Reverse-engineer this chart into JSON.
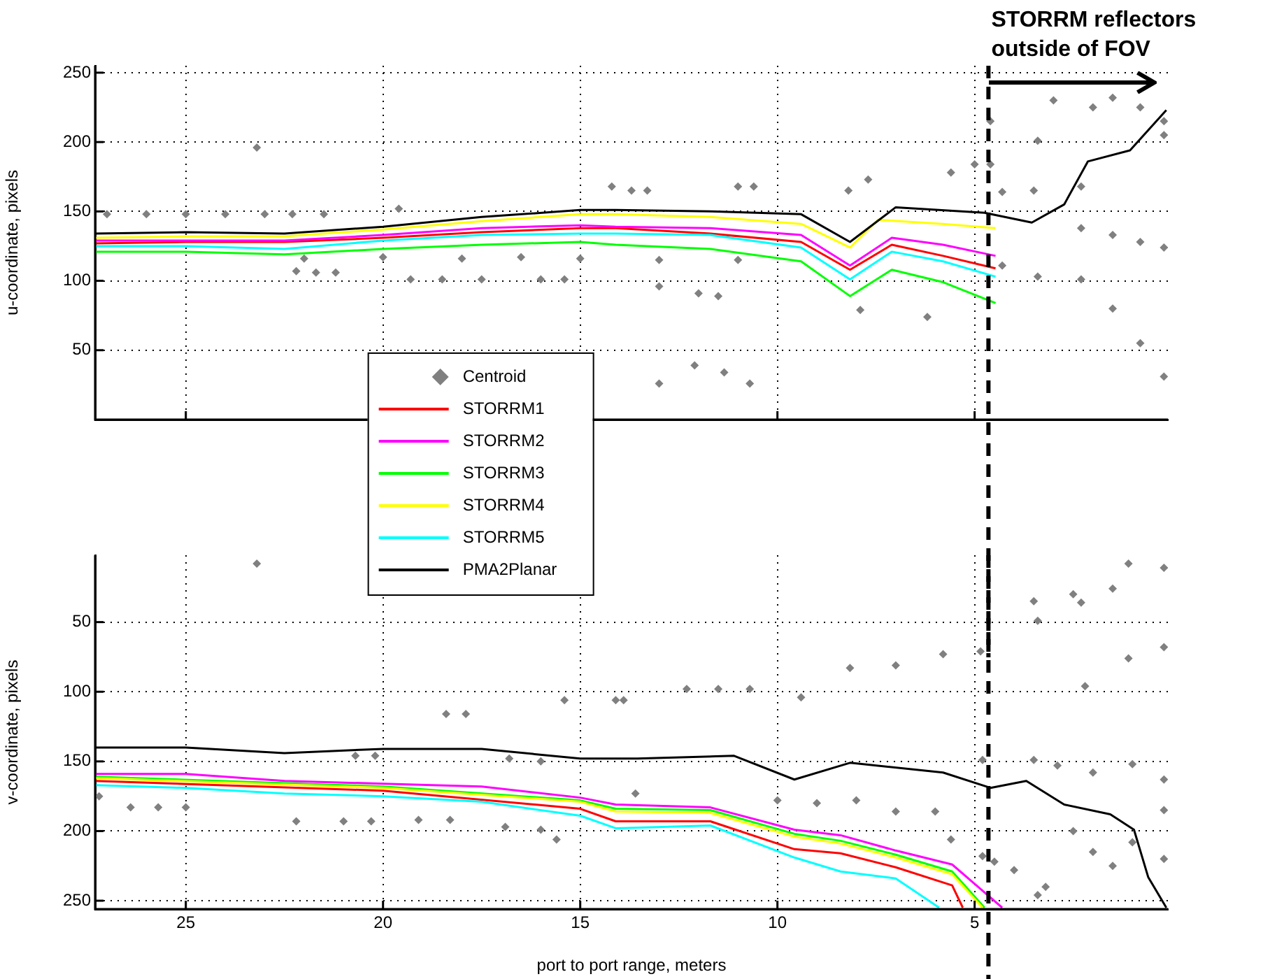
{
  "chart_data": [
    {
      "type": "line",
      "ylabel": "u-coordinate, pixels",
      "annotations": [
        "STORRM reflectors outside of FOV"
      ],
      "xlim": [
        27.3,
        0.1
      ],
      "xticks": [
        25,
        20,
        15,
        10,
        5
      ],
      "ylim": [
        0,
        255
      ],
      "yticks": [
        50,
        100,
        150,
        200,
        250
      ],
      "grid": true,
      "legend": "bottom",
      "tick_labels": "y",
      "ref_lines": [
        {
          "axis": "x",
          "value": 4.65,
          "color": "#000000",
          "line_style": "dashed"
        }
      ],
      "series": [
        {
          "name": "Centroid",
          "type": "scatter",
          "marker": "diamond",
          "color": "#808080",
          "x": [
            27,
            26,
            25,
            24,
            23,
            22.3,
            21.5,
            19.6,
            22,
            20,
            18,
            16.5,
            15,
            13,
            11,
            19.3,
            18.5,
            17.5,
            16,
            15.4,
            21.7,
            21.2,
            13,
            12,
            11.5,
            23.2,
            14.2,
            13.7,
            13.3,
            11,
            10.6,
            8.2,
            7.7,
            5.6,
            5,
            4.6,
            3.4,
            4.6,
            3,
            2,
            1.5,
            0.8,
            0.2,
            0.2,
            4.3,
            3.5,
            2.3,
            2.3,
            1.5,
            0.8,
            0.2,
            2.3,
            1.5,
            0.8,
            0.2,
            4.3,
            3.4,
            7.9,
            6.2,
            12.1,
            11.35,
            13,
            10.7,
            22.2
          ],
          "values": [
            148,
            148,
            148,
            148,
            148,
            148,
            148,
            152,
            116,
            117,
            116,
            117,
            116,
            115,
            115,
            101,
            101,
            101,
            101,
            101,
            106,
            106,
            96,
            91,
            89,
            196,
            168,
            165,
            165,
            168,
            168,
            165,
            173,
            178,
            184,
            184,
            201,
            215,
            230,
            225,
            232,
            225,
            215,
            205,
            164,
            165,
            168,
            138,
            133,
            128,
            124,
            101,
            80,
            55,
            31,
            111,
            103,
            79,
            74,
            39,
            34,
            26,
            26,
            107
          ]
        },
        {
          "name": "STORRM1",
          "type": "line",
          "color": "#ff0000",
          "x": [
            27.3,
            25,
            22.5,
            20,
            17.5,
            15,
            14.1,
            11.7,
            9.4,
            8.16,
            7.1,
            5.8,
            4.47
          ],
          "values": [
            127,
            128,
            128,
            131,
            135,
            138,
            138,
            134,
            128,
            108,
            126,
            118,
            109
          ]
        },
        {
          "name": "STORRM2",
          "type": "line",
          "color": "#ff00ff",
          "x": [
            27.3,
            25,
            22.5,
            20,
            17.5,
            15,
            14.1,
            11.7,
            9.4,
            8.16,
            7.1,
            5.8,
            4.47
          ],
          "values": [
            129,
            129,
            129,
            133,
            138,
            140,
            139,
            138,
            133,
            111,
            131,
            126,
            118
          ]
        },
        {
          "name": "STORRM3",
          "type": "line",
          "color": "#00ff00",
          "x": [
            27.3,
            25,
            22.5,
            20,
            17.5,
            15,
            14.1,
            11.7,
            9.4,
            8.16,
            7.1,
            5.8,
            4.47
          ],
          "values": [
            121,
            121,
            119,
            123,
            126,
            128,
            126,
            123,
            114,
            89,
            108,
            99,
            84
          ]
        },
        {
          "name": "STORRM4",
          "type": "line",
          "color": "#ffff00",
          "x": [
            27.3,
            25,
            22.5,
            20,
            17.5,
            15,
            14.1,
            11.7,
            9.4,
            8.16,
            7.45,
            5.8,
            4.47
          ],
          "values": [
            131,
            132,
            132,
            137,
            143,
            148,
            148,
            146,
            141,
            124,
            144,
            141,
            138
          ]
        },
        {
          "name": "STORRM5",
          "type": "line",
          "color": "#00ffff",
          "x": [
            27.3,
            25,
            22.5,
            20,
            17.5,
            15,
            14.1,
            11.7,
            9.4,
            8.16,
            7.1,
            5.8,
            4.47
          ],
          "values": [
            125,
            125,
            123,
            129,
            133,
            134,
            134,
            133,
            124,
            101,
            121,
            114,
            103
          ]
        },
        {
          "name": "PMA2Planar",
          "type": "line",
          "color": "#000000",
          "x": [
            27.3,
            25,
            22.5,
            20,
            17.5,
            15,
            14.1,
            11.7,
            9.4,
            8.16,
            7,
            4.75,
            3.55,
            2.73,
            2.13,
            1.06,
            0.14
          ],
          "values": [
            134,
            135,
            134,
            139,
            146,
            151,
            151,
            150,
            148,
            128,
            153,
            149,
            142,
            155,
            186,
            194,
            223
          ]
        }
      ]
    },
    {
      "type": "line",
      "xlabel": "port to port range, meters",
      "ylabel": "v-coordinate, pixels",
      "xlim": [
        27.3,
        0.1
      ],
      "xticks": [
        25,
        20,
        15,
        10,
        5
      ],
      "ylim": [
        256,
        2
      ],
      "yticks": [
        50,
        100,
        150,
        200,
        250
      ],
      "grid": true,
      "ref_lines": [
        {
          "axis": "x",
          "value": 4.65,
          "color": "#000000",
          "line_style": "dashed"
        }
      ],
      "series": [
        {
          "type": "scatter",
          "marker": "diamond",
          "color": "#808080",
          "x": [
            23.2,
            18.4,
            17.9,
            15.4,
            13.9,
            14.1,
            12.3,
            11.5,
            10.7,
            9.4,
            8.16,
            7,
            5.8,
            4.85,
            3.4,
            2.3,
            1.1,
            0.2,
            2.2,
            1.1,
            0.2,
            3.5,
            2.5,
            1.5,
            4.8,
            3.5,
            2.9,
            2,
            1,
            0.2,
            10,
            9,
            8,
            7,
            6,
            5.6,
            4.8,
            4,
            3.4,
            4.5,
            3.2,
            2.5,
            2,
            1.5,
            1,
            0.2,
            0.2,
            26.4,
            25.7,
            25,
            27.2,
            22.2,
            21,
            20.3,
            19.1,
            18.3,
            16.9,
            16,
            15.6,
            20.7,
            20.2,
            16.8,
            16,
            13.6
          ],
          "values": [
            8,
            116,
            116,
            106,
            106,
            106,
            98,
            98,
            98,
            104,
            83,
            81,
            73,
            71,
            49,
            36,
            8,
            11,
            96,
            76,
            68,
            35,
            30,
            26,
            149,
            149,
            153,
            158,
            152,
            163,
            178,
            180,
            178,
            186,
            186,
            206,
            218,
            228,
            246,
            222,
            240,
            200,
            215,
            225,
            208,
            220,
            185,
            183,
            183,
            183,
            175,
            193,
            193,
            193,
            192,
            192,
            197,
            199,
            206,
            146,
            146,
            148,
            150,
            173
          ]
        },
        {
          "type": "line",
          "color": "#ff0000",
          "x": [
            27.3,
            20,
            15,
            14.1,
            11.7,
            9.57,
            8.4,
            7,
            5.57,
            5.3
          ],
          "values": [
            164,
            171,
            184,
            193,
            193,
            213,
            216,
            226,
            239,
            255
          ]
        },
        {
          "type": "line",
          "color": "#ff00ff",
          "x": [
            27.3,
            25,
            22.5,
            20,
            17.5,
            15,
            14.1,
            11.7,
            9.57,
            8.4,
            7,
            5.57,
            4.3
          ],
          "values": [
            159,
            159,
            164,
            166,
            168,
            176,
            181,
            183,
            199,
            203,
            214,
            224,
            255
          ]
        },
        {
          "type": "line",
          "color": "#00ff00",
          "x": [
            27.3,
            20,
            15,
            14.1,
            11.7,
            9.57,
            8.4,
            7,
            5.57,
            4.75
          ],
          "values": [
            161,
            168,
            178,
            184,
            185,
            202,
            207,
            217,
            229,
            255
          ]
        },
        {
          "type": "line",
          "color": "#ffff00",
          "x": [
            27.3,
            20,
            15,
            14.1,
            11.7,
            9.57,
            8.4,
            7,
            5.57,
            4.8
          ],
          "values": [
            162,
            169,
            179,
            186,
            187,
            204,
            209,
            219,
            231,
            255
          ]
        },
        {
          "type": "line",
          "color": "#00ffff",
          "x": [
            27.3,
            25,
            22.5,
            20,
            17.5,
            15,
            14.1,
            11.7,
            9.57,
            8.4,
            7,
            5.9
          ],
          "values": [
            167,
            169,
            173,
            175,
            179,
            189,
            198,
            196,
            219,
            229,
            234,
            255
          ]
        },
        {
          "type": "line",
          "color": "#000000",
          "x": [
            27.3,
            25,
            22.5,
            20,
            17.5,
            15,
            13.55,
            11.1,
            9.57,
            8.16,
            5.8,
            4.6,
            3.69,
            2.73,
            1.56,
            0.96,
            0.6,
            0.14
          ],
          "values": [
            140,
            140,
            144,
            141,
            141,
            148,
            148,
            146,
            163,
            151,
            158,
            169,
            164,
            181,
            188,
            199,
            233,
            255
          ]
        }
      ]
    }
  ]
}
